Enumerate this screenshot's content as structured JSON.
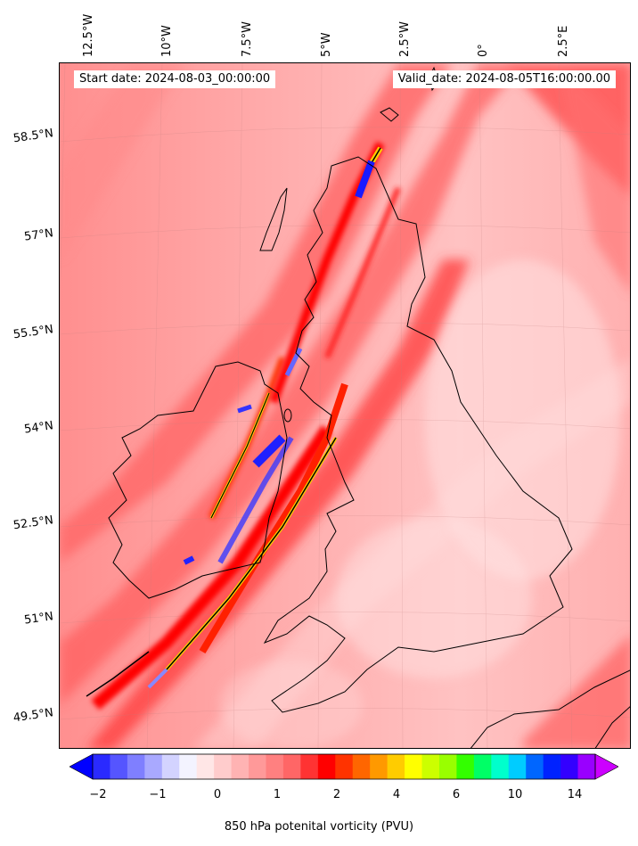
{
  "header": {
    "start_date": "Start date: 2024-08-03_00:00:00",
    "valid_date": "Valid_date: 2024-08-05T16:00:00.00"
  },
  "axes": {
    "lon_labels": [
      "12.5°W",
      "10°W",
      "7.5°W",
      "5°W",
      "2.5°W",
      "0°",
      "2.5°E"
    ],
    "lat_labels": [
      "58.5°N",
      "57°N",
      "55.5°N",
      "54°N",
      "52.5°N",
      "51°N",
      "49.5°N"
    ]
  },
  "colorbar": {
    "title": "850 hPa potenital vorticity (PVU)",
    "ticks": [
      "−2",
      "−1",
      "0",
      "1",
      "2",
      "4",
      "6",
      "10",
      "14"
    ],
    "colors": [
      "#0000ff",
      "#2a2aff",
      "#5555ff",
      "#7f7fff",
      "#a9a9ff",
      "#d3d3ff",
      "#f3f3ff",
      "#ffe6e6",
      "#ffcccc",
      "#ffb3b3",
      "#ff9999",
      "#ff8080",
      "#ff6666",
      "#ff3333",
      "#ff0000",
      "#ff3300",
      "#ff6600",
      "#ff9900",
      "#ffcc00",
      "#ffff00",
      "#ccff00",
      "#99ff00",
      "#33ff00",
      "#00ff66",
      "#00ffcc",
      "#00ccff",
      "#0066ff",
      "#0022ff",
      "#3300ff",
      "#9900ff",
      "#cc00ff"
    ]
  },
  "colors": {
    "background": "#ffc7c7",
    "coast": "#000000"
  }
}
